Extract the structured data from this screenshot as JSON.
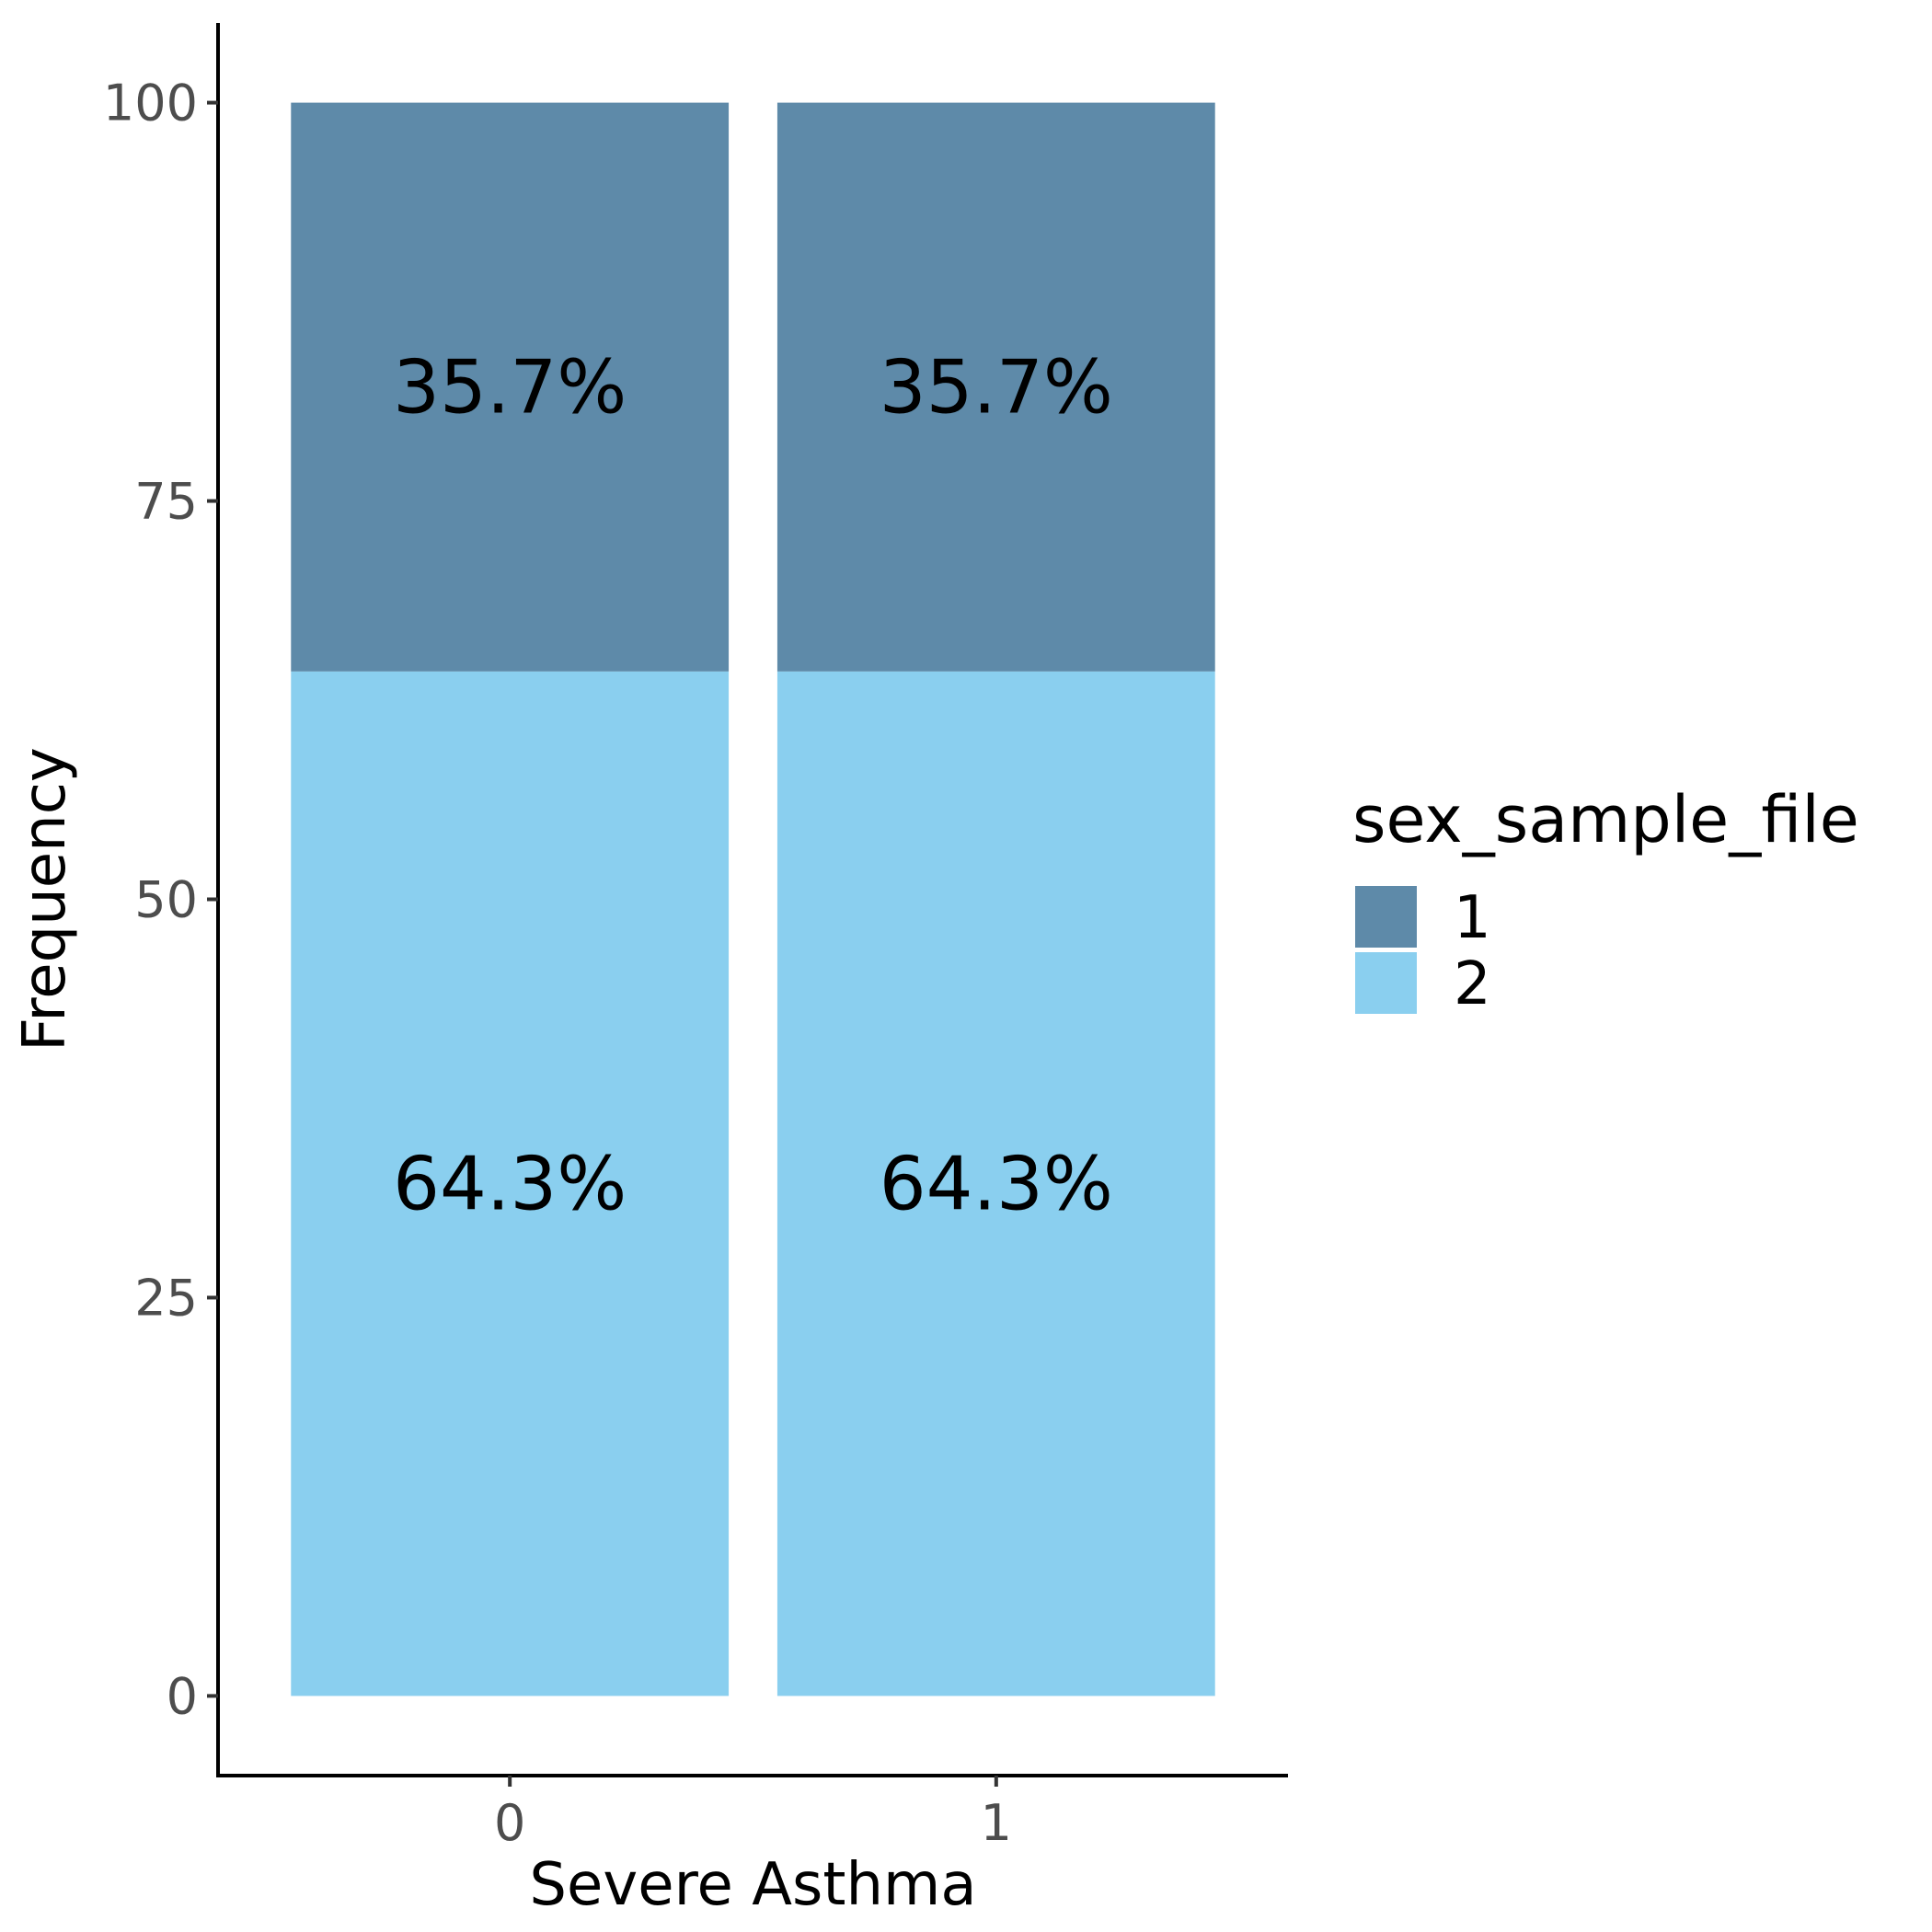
{
  "chart_data": {
    "type": "bar",
    "stacked": true,
    "categories": [
      "0",
      "1"
    ],
    "xlabel": "Severe Asthma",
    "ylabel": "Frequency",
    "ylim": [
      -5,
      105
    ],
    "yticks": [
      0,
      25,
      50,
      75,
      100
    ],
    "ytick_labels": [
      "0",
      "25",
      "50",
      "75",
      "100"
    ],
    "grid": false,
    "legend": {
      "title": "sex_sample_file",
      "position": "right",
      "entries": [
        "1",
        "2"
      ]
    },
    "series": [
      {
        "name": "1",
        "color": "#5e8aa9",
        "values": [
          35.7,
          35.7
        ],
        "labels": [
          "35.7%",
          "35.7%"
        ]
      },
      {
        "name": "2",
        "color": "#8acfef",
        "values": [
          64.3,
          64.3
        ],
        "labels": [
          "64.3%",
          "64.3%"
        ]
      }
    ]
  }
}
